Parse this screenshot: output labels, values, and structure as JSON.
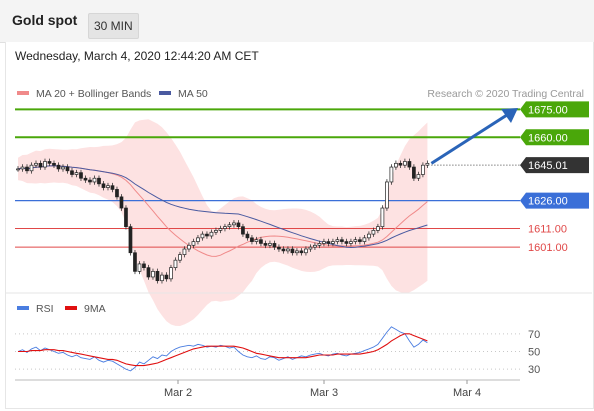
{
  "header": {
    "title": "Gold spot",
    "timeframe": "30 MIN"
  },
  "datetime": "Wednesday, March 4, 2020 12:44:20 AM CET",
  "credit": "Research © 2020 Trading Central",
  "colors": {
    "resistance": "#4aa70a",
    "current": "#333333",
    "pivot": "#3a6fd8",
    "support": "#e04848",
    "ma20": "#f08a8a",
    "ma50": "#4a5aa0",
    "band_fill": "#fde2e2",
    "rsi": "#4a7de0",
    "rsi_ma": "#e01010",
    "arrow": "#2a64b8"
  },
  "chart_data": [
    {
      "type": "candlestick",
      "legend": [
        {
          "name": "MA 20 + Bollinger Bands",
          "color": "#f08a8a"
        },
        {
          "name": "MA 50",
          "color": "#4a5aa0"
        }
      ],
      "x_ticks": [
        "Mar 2",
        "Mar 3",
        "Mar 4"
      ],
      "levels": [
        {
          "value": 1675.0,
          "label": "1675.00",
          "kind": "resistance"
        },
        {
          "value": 1660.0,
          "label": "1660.00",
          "kind": "resistance"
        },
        {
          "value": 1645.01,
          "label": "1645.01",
          "kind": "current"
        },
        {
          "value": 1626.0,
          "label": "1626.00",
          "kind": "pivot"
        },
        {
          "value": 1611.0,
          "label": "1611.00",
          "kind": "support"
        },
        {
          "value": 1601.0,
          "label": "1601.00",
          "kind": "support"
        }
      ],
      "close_series": [
        1643,
        1644,
        1642,
        1645,
        1646,
        1644,
        1647,
        1646,
        1645,
        1643,
        1644,
        1642,
        1640,
        1641,
        1638,
        1637,
        1636,
        1638,
        1635,
        1633,
        1634,
        1632,
        1628,
        1622,
        1612,
        1598,
        1588,
        1592,
        1590,
        1585,
        1588,
        1583,
        1586,
        1584,
        1590,
        1594,
        1597,
        1600,
        1602,
        1604,
        1606,
        1608,
        1607,
        1609,
        1610,
        1611,
        1612,
        1613,
        1614,
        1612,
        1608,
        1606,
        1604,
        1605,
        1603,
        1602,
        1603,
        1601,
        1600,
        1599,
        1600,
        1598,
        1599,
        1598,
        1600,
        1601,
        1602,
        1603,
        1604,
        1603,
        1604,
        1605,
        1604,
        1603,
        1604,
        1605,
        1604,
        1606,
        1608,
        1610,
        1612,
        1622,
        1636,
        1644,
        1646,
        1645,
        1647,
        1644,
        1638,
        1640,
        1645,
        1646
      ],
      "y_range": [
        1578,
        1680
      ],
      "bollinger_visible": true,
      "ma_visible": true
    },
    {
      "type": "line",
      "legend": [
        {
          "name": "RSI",
          "color": "#4a7de0"
        },
        {
          "name": "9MA",
          "color": "#e01010"
        }
      ],
      "y_ticks": [
        70,
        50,
        30
      ],
      "y_range": [
        20,
        80
      ],
      "rsi_series": [
        50,
        52,
        49,
        53,
        55,
        51,
        54,
        52,
        50,
        48,
        49,
        46,
        44,
        46,
        43,
        42,
        41,
        44,
        40,
        38,
        40,
        39,
        36,
        33,
        30,
        28,
        32,
        38,
        36,
        40,
        44,
        42,
        46,
        45,
        50,
        53,
        55,
        56,
        57,
        56,
        58,
        57,
        55,
        56,
        55,
        57,
        56,
        54,
        55,
        50,
        46,
        44,
        43,
        45,
        42,
        41,
        44,
        43,
        40,
        42,
        44,
        41,
        43,
        45,
        44,
        46,
        47,
        48,
        46,
        45,
        47,
        48,
        46,
        45,
        47,
        48,
        49,
        51,
        53,
        55,
        58,
        65,
        72,
        78,
        75,
        72,
        70,
        62,
        55,
        58,
        63,
        60
      ],
      "ma9_series": [
        50,
        50,
        50,
        51,
        51,
        51,
        52,
        52,
        52,
        51,
        51,
        50,
        49,
        48,
        47,
        46,
        45,
        44,
        43,
        42,
        41,
        41,
        40,
        38,
        36,
        35,
        34,
        34,
        34,
        35,
        36,
        37,
        39,
        41,
        43,
        45,
        47,
        49,
        51,
        53,
        54,
        55,
        56,
        56,
        56,
        56,
        56,
        56,
        56,
        55,
        54,
        52,
        50,
        48,
        47,
        46,
        45,
        44,
        43,
        43,
        43,
        43,
        43,
        43,
        43,
        44,
        45,
        46,
        46,
        46,
        46,
        47,
        47,
        47,
        47,
        47,
        47,
        48,
        49,
        50,
        52,
        55,
        58,
        62,
        65,
        68,
        70,
        70,
        68,
        66,
        64,
        62
      ]
    }
  ]
}
